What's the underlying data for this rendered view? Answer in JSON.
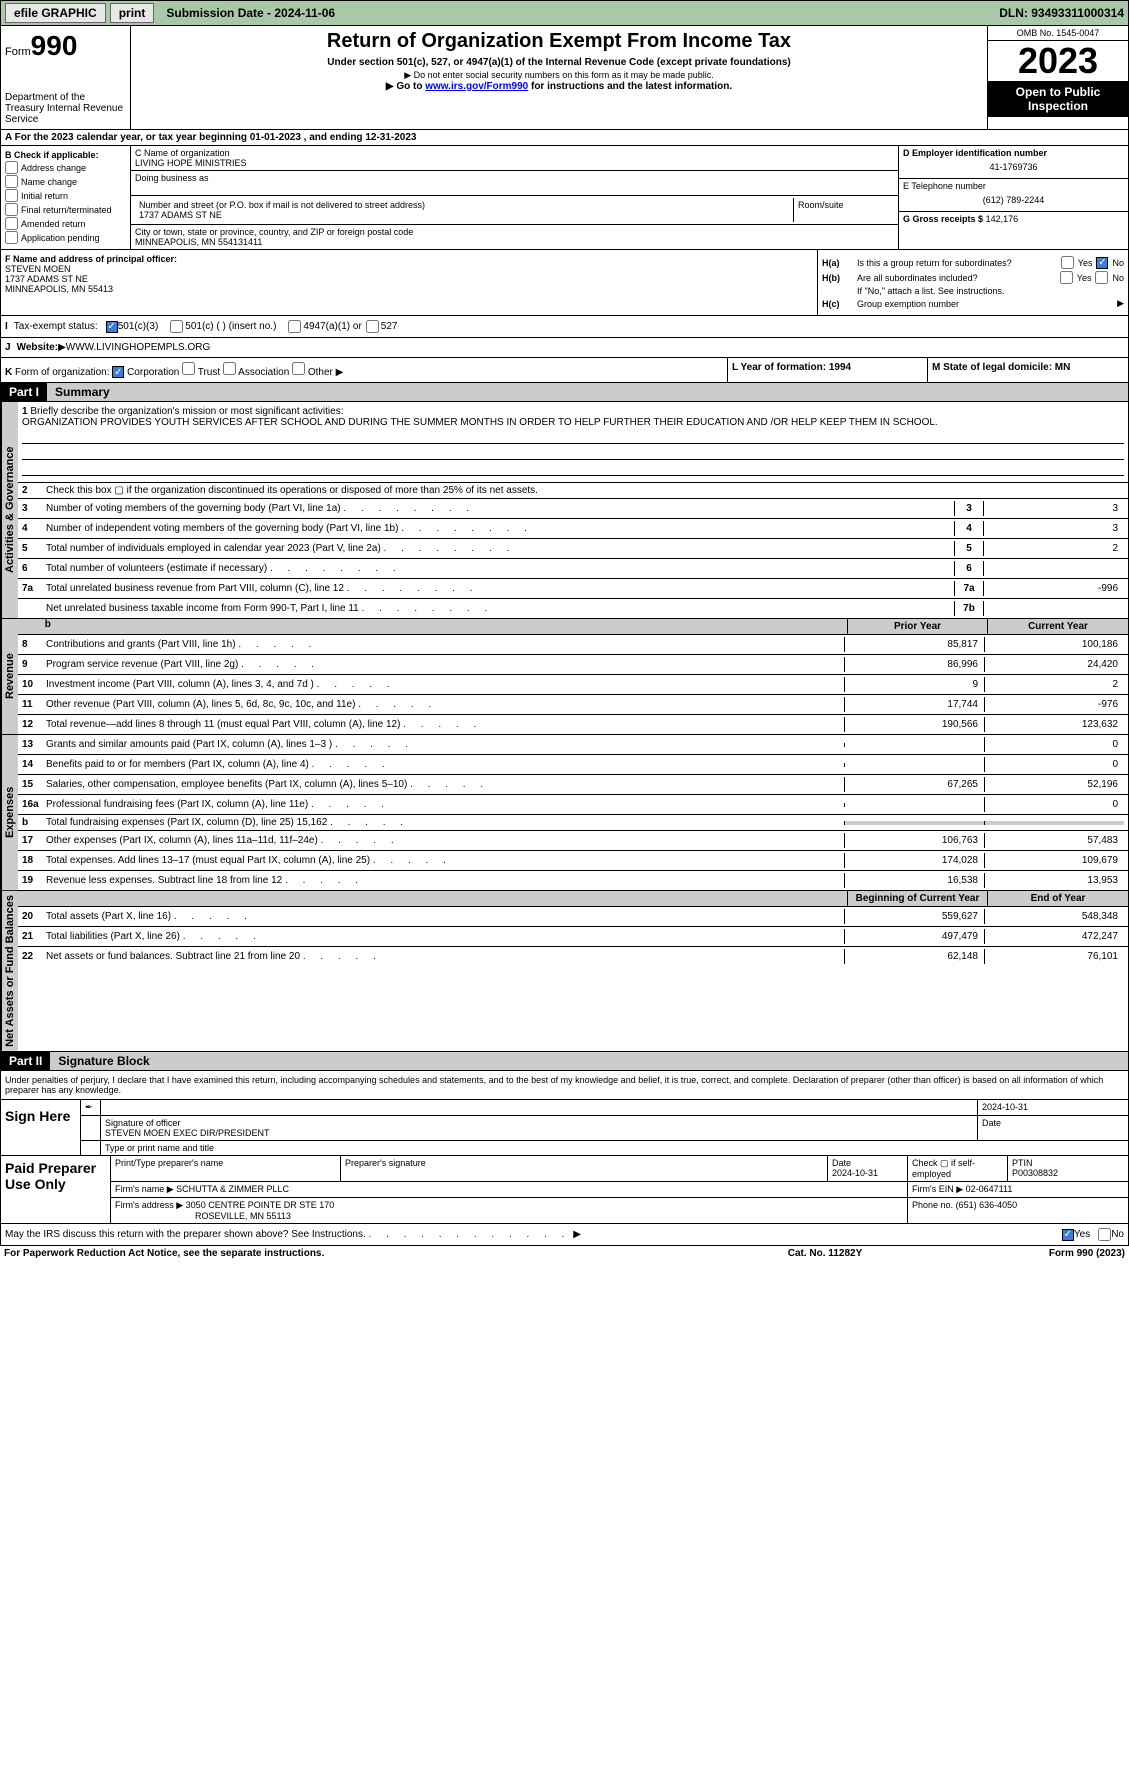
{
  "topbar": {
    "efile_label": "efile GRAPHIC",
    "print_label": "print",
    "submission_label": "Submission Date - 2024-11-06",
    "dln_label": "DLN: 93493311000314"
  },
  "header": {
    "form_prefix": "Form",
    "form_number": "990",
    "dept": "Department of the Treasury Internal Revenue Service",
    "title": "Return of Organization Exempt From Income Tax",
    "subtitle": "Under section 501(c), 527, or 4947(a)(1) of the Internal Revenue Code (except private foundations)",
    "warn": "Do not enter social security numbers on this form as it may be made public.",
    "goto": "Go to",
    "goto_url": "www.irs.gov/Form990",
    "goto_suffix": " for instructions and the latest information.",
    "omb": "OMB No. 1545-0047",
    "year": "2023",
    "open_pub": "Open to Public Inspection"
  },
  "period": "A For the 2023 calendar year, or tax year beginning 01-01-2023   , and ending 12-31-2023",
  "box_b": {
    "title": "B Check if applicable:",
    "items": [
      "Address change",
      "Name change",
      "Initial return",
      "Final return/terminated",
      "Amended return",
      "Application pending"
    ]
  },
  "box_c": {
    "name_label": "C Name of organization",
    "name": "LIVING HOPE MINISTRIES",
    "dba_label": "Doing business as",
    "addr_label": "Number and street (or P.O. box if mail is not delivered to street address)",
    "addr": "1737 ADAMS ST NE",
    "room_label": "Room/suite",
    "city_label": "City or town, state or province, country, and ZIP or foreign postal code",
    "city": "MINNEAPOLIS, MN  554131411"
  },
  "box_d": {
    "label": "D Employer identification number",
    "value": "41-1769736"
  },
  "box_e": {
    "label": "E Telephone number",
    "value": "(612) 789-2244"
  },
  "box_g": {
    "label": "G Gross receipts $",
    "value": "142,176"
  },
  "box_f": {
    "label": "F  Name and address of principal officer:",
    "name": "STEVEN MOEN",
    "addr1": "1737 ADAMS ST NE",
    "addr2": "MINNEAPOLIS, MN  55413"
  },
  "box_h": {
    "ha_label": "H(a)",
    "ha_text": "Is this a group return for subordinates?",
    "hb_label": "H(b)",
    "hb_text": "Are all subordinates included?",
    "hb_note": "If \"No,\" attach a list. See instructions.",
    "hc_label": "H(c)",
    "hc_text": "Group exemption number",
    "yes": "Yes",
    "no": "No"
  },
  "row_i": {
    "label": "I",
    "text": "Tax-exempt status:",
    "o1": "501(c)(3)",
    "o2": "501(c) (  ) (insert no.)",
    "o3": "4947(a)(1) or",
    "o4": "527"
  },
  "row_j": {
    "label": "J",
    "text": "Website:",
    "value": "WWW.LIVINGHOPEMPLS.ORG"
  },
  "row_k": {
    "label": "K",
    "text": "Form of organization:",
    "o1": "Corporation",
    "o2": "Trust",
    "o3": "Association",
    "o4": "Other"
  },
  "row_l": {
    "label": "L Year of formation: 1994"
  },
  "row_m": {
    "label": "M State of legal domicile: MN"
  },
  "part1": {
    "label": "Part I",
    "title": "Summary"
  },
  "mission": {
    "num": "1",
    "label": "Briefly describe the organization's mission or most significant activities:",
    "text": "ORGANIZATION PROVIDES YOUTH SERVICES AFTER SCHOOL AND DURING THE SUMMER MONTHS IN ORDER TO HELP FURTHER THEIR EDUCATION AND /OR HELP KEEP THEM IN SCHOOL."
  },
  "gov_lines": [
    {
      "n": "2",
      "t": "Check this box ▢ if the organization discontinued its operations or disposed of more than 25% of its net assets.",
      "nb": "",
      "v": ""
    },
    {
      "n": "3",
      "t": "Number of voting members of the governing body (Part VI, line 1a)",
      "nb": "3",
      "v": "3"
    },
    {
      "n": "4",
      "t": "Number of independent voting members of the governing body (Part VI, line 1b)",
      "nb": "4",
      "v": "3"
    },
    {
      "n": "5",
      "t": "Total number of individuals employed in calendar year 2023 (Part V, line 2a)",
      "nb": "5",
      "v": "2"
    },
    {
      "n": "6",
      "t": "Total number of volunteers (estimate if necessary)",
      "nb": "6",
      "v": ""
    },
    {
      "n": "7a",
      "t": "Total unrelated business revenue from Part VIII, column (C), line 12",
      "nb": "7a",
      "v": "-996"
    },
    {
      "n": "",
      "t": "Net unrelated business taxable income from Form 990-T, Part I, line 11",
      "nb": "7b",
      "v": ""
    }
  ],
  "py_label": "Prior Year",
  "cy_label": "Current Year",
  "rev_lines": [
    {
      "n": "8",
      "t": "Contributions and grants (Part VIII, line 1h)",
      "py": "85,817",
      "cy": "100,186"
    },
    {
      "n": "9",
      "t": "Program service revenue (Part VIII, line 2g)",
      "py": "86,996",
      "cy": "24,420"
    },
    {
      "n": "10",
      "t": "Investment income (Part VIII, column (A), lines 3, 4, and 7d )",
      "py": "9",
      "cy": "2"
    },
    {
      "n": "11",
      "t": "Other revenue (Part VIII, column (A), lines 5, 6d, 8c, 9c, 10c, and 11e)",
      "py": "17,744",
      "cy": "-976"
    },
    {
      "n": "12",
      "t": "Total revenue—add lines 8 through 11 (must equal Part VIII, column (A), line 12)",
      "py": "190,566",
      "cy": "123,632"
    }
  ],
  "exp_lines": [
    {
      "n": "13",
      "t": "Grants and similar amounts paid (Part IX, column (A), lines 1–3 )",
      "py": "",
      "cy": "0"
    },
    {
      "n": "14",
      "t": "Benefits paid to or for members (Part IX, column (A), line 4)",
      "py": "",
      "cy": "0"
    },
    {
      "n": "15",
      "t": "Salaries, other compensation, employee benefits (Part IX, column (A), lines 5–10)",
      "py": "67,265",
      "cy": "52,196"
    },
    {
      "n": "16a",
      "t": "Professional fundraising fees (Part IX, column (A), line 11e)",
      "py": "",
      "cy": "0"
    },
    {
      "n": "b",
      "t": "Total fundraising expenses (Part IX, column (D), line 25) 15,162",
      "py": "gray",
      "cy": "gray"
    },
    {
      "n": "17",
      "t": "Other expenses (Part IX, column (A), lines 11a–11d, 11f–24e)",
      "py": "106,763",
      "cy": "57,483"
    },
    {
      "n": "18",
      "t": "Total expenses. Add lines 13–17 (must equal Part IX, column (A), line 25)",
      "py": "174,028",
      "cy": "109,679"
    },
    {
      "n": "19",
      "t": "Revenue less expenses. Subtract line 18 from line 12",
      "py": "16,538",
      "cy": "13,953"
    }
  ],
  "boy_label": "Beginning of Current Year",
  "eoy_label": "End of Year",
  "na_lines": [
    {
      "n": "20",
      "t": "Total assets (Part X, line 16)",
      "py": "559,627",
      "cy": "548,348"
    },
    {
      "n": "21",
      "t": "Total liabilities (Part X, line 26)",
      "py": "497,479",
      "cy": "472,247"
    },
    {
      "n": "22",
      "t": "Net assets or fund balances. Subtract line 21 from line 20",
      "py": "62,148",
      "cy": "76,101"
    }
  ],
  "vtabs": {
    "gov": "Activities & Governance",
    "rev": "Revenue",
    "exp": "Expenses",
    "na": "Net Assets or Fund Balances"
  },
  "part2": {
    "label": "Part II",
    "title": "Signature Block"
  },
  "sig_decl": "Under penalties of perjury, I declare that I have examined this return, including accompanying schedules and statements, and to the best of my knowledge and belief, it is true, correct, and complete. Declaration of preparer (other than officer) is based on all information of which preparer has any knowledge.",
  "sign_here": "Sign Here",
  "sig": {
    "date": "2024-10-31",
    "sig_label": "Signature of officer",
    "name": "STEVEN MOEN  EXEC DIR/PRESIDENT",
    "name_label": "Type or print name and title",
    "date_label": "Date"
  },
  "paid": {
    "title": "Paid Preparer Use Only",
    "h1": "Print/Type preparer's name",
    "h2": "Preparer's signature",
    "h3": "Date",
    "h3v": "2024-10-31",
    "h4": "Check ▢ if self-employed",
    "h5": "PTIN",
    "h5v": "P00308832",
    "firm_name_label": "Firm's name",
    "firm_name": "SCHUTTA & ZIMMER PLLC",
    "firm_ein_label": "Firm's EIN",
    "firm_ein": "02-0647111",
    "firm_addr_label": "Firm's address",
    "firm_addr1": "3050 CENTRE POINTE DR STE 170",
    "firm_addr2": "ROSEVILLE, MN  55113",
    "phone_label": "Phone no.",
    "phone": "(651) 636-4050"
  },
  "discuss": {
    "text": "May the IRS discuss this return with the preparer shown above? See Instructions.",
    "yes": "Yes",
    "no": "No"
  },
  "footer": {
    "left": "For Paperwork Reduction Act Notice, see the separate instructions.",
    "mid": "Cat. No. 11282Y",
    "right": "Form 990 (2023)"
  }
}
